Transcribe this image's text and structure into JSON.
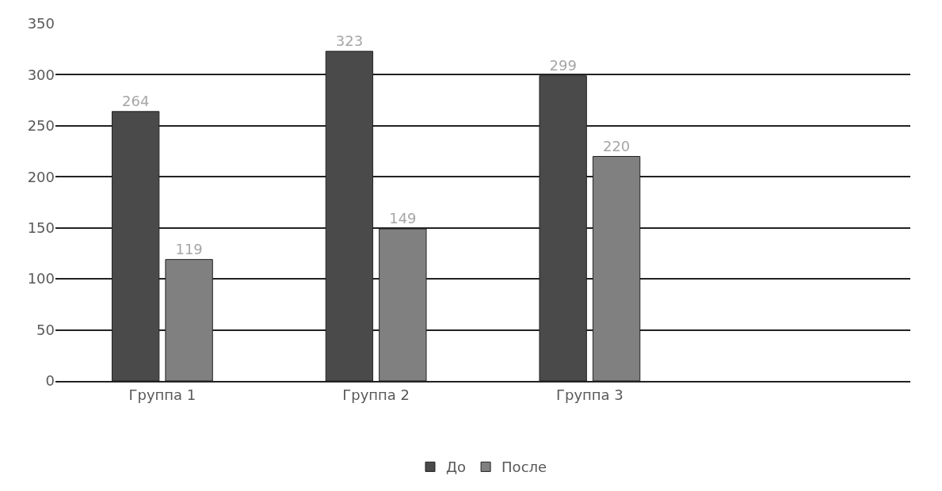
{
  "chart_data": {
    "type": "bar",
    "categories": [
      "Группа 1",
      "Группа 2",
      "Группа 3"
    ],
    "series": [
      {
        "name": "До",
        "color": "#4a4a4a",
        "values": [
          264,
          323,
          299
        ]
      },
      {
        "name": "После",
        "color": "#808080",
        "values": [
          119,
          149,
          220
        ]
      }
    ],
    "ylim": [
      0,
      350
    ],
    "yticks": [
      0,
      50,
      100,
      150,
      200,
      250,
      300,
      350
    ],
    "grid": "y",
    "legend": "bottom",
    "data_labels": true
  }
}
